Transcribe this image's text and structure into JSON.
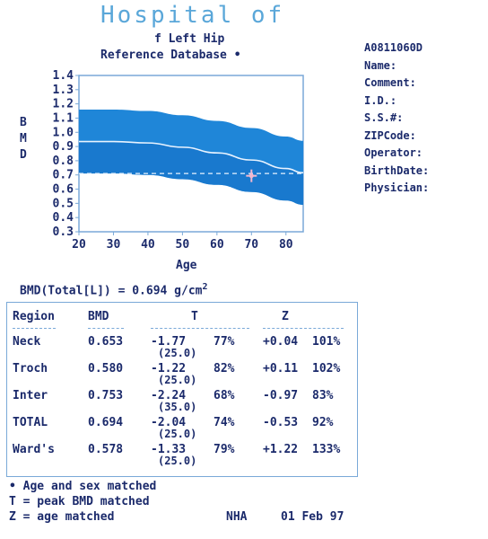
{
  "header": {
    "title": "Hospital of",
    "subtitle1": "f Left Hip",
    "subtitle2": "Reference Database •"
  },
  "patient": {
    "id": "A0811060D",
    "fields": [
      "Name:",
      "Comment:",
      "I.D.:",
      "S.S.#:",
      "ZIPCode:",
      "Operator:",
      "BirthDate:",
      "Physician:"
    ]
  },
  "chart_data": {
    "type": "area",
    "ylabel_letters": [
      "B",
      "M",
      "D"
    ],
    "xlabel": "Age",
    "x_ticks": [
      20,
      30,
      40,
      50,
      60,
      70,
      80
    ],
    "y_ticks": [
      1.4,
      1.3,
      1.2,
      1.1,
      1.0,
      0.9,
      0.8,
      0.7,
      0.6,
      0.5,
      0.4,
      0.3
    ],
    "y_tick_labels": [
      "1.4",
      "1.3",
      "1.2",
      "1.1",
      "1.0",
      "0.9",
      "0.8",
      "0.7",
      "0.6",
      "0.5",
      "0.4",
      "0.3"
    ],
    "xlim": [
      20,
      85
    ],
    "ylim": [
      0.3,
      1.4
    ],
    "band_x": [
      20,
      30,
      40,
      50,
      60,
      70,
      80,
      85
    ],
    "band_upper": [
      1.16,
      1.16,
      1.15,
      1.12,
      1.08,
      1.03,
      0.97,
      0.94
    ],
    "band_lower": [
      0.71,
      0.71,
      0.7,
      0.67,
      0.63,
      0.58,
      0.52,
      0.49
    ],
    "mean_curve": [
      0.935,
      0.935,
      0.925,
      0.895,
      0.855,
      0.805,
      0.745,
      0.715
    ],
    "peak_reference_line": 0.71,
    "patient_point": {
      "x": 70,
      "y": 0.694
    },
    "colors": {
      "band": "#1f86d8",
      "band_dark": "#1470c6",
      "curve": "#e8f3ff",
      "marker": "#f2b8cf",
      "frame": "#7aa9d8"
    }
  },
  "bmd_total": {
    "label": "BMD(Total[L]) = 0.694 g/cm",
    "superscript": "2"
  },
  "table": {
    "headers": [
      "Region",
      "BMD",
      "T",
      "Z"
    ],
    "rows": [
      {
        "region": "Neck",
        "bmd": "0.653",
        "t": "-1.77",
        "t_pct": "77%",
        "t_age": "(25.0)",
        "z": "+0.04",
        "z_pct": "101%"
      },
      {
        "region": "Troch",
        "bmd": "0.580",
        "t": "-1.22",
        "t_pct": "82%",
        "t_age": "(25.0)",
        "z": "+0.11",
        "z_pct": "102%"
      },
      {
        "region": "Inter",
        "bmd": "0.753",
        "t": "-2.24",
        "t_pct": "68%",
        "t_age": "(35.0)",
        "z": "-0.97",
        "z_pct": "83%"
      },
      {
        "region": "TOTAL",
        "bmd": "0.694",
        "t": "-2.04",
        "t_pct": "74%",
        "t_age": "(25.0)",
        "z": "-0.53",
        "z_pct": "92%"
      },
      {
        "region": "Ward's",
        "bmd": "0.578",
        "t": "-1.33",
        "t_pct": "79%",
        "t_age": "(25.0)",
        "z": "+1.22",
        "z_pct": "133%"
      }
    ]
  },
  "footer": {
    "note1": "• Age and sex matched",
    "note2": "T = peak BMD matched",
    "note3": "Z = age matched",
    "operator": "NHA",
    "date": "01 Feb 97"
  }
}
